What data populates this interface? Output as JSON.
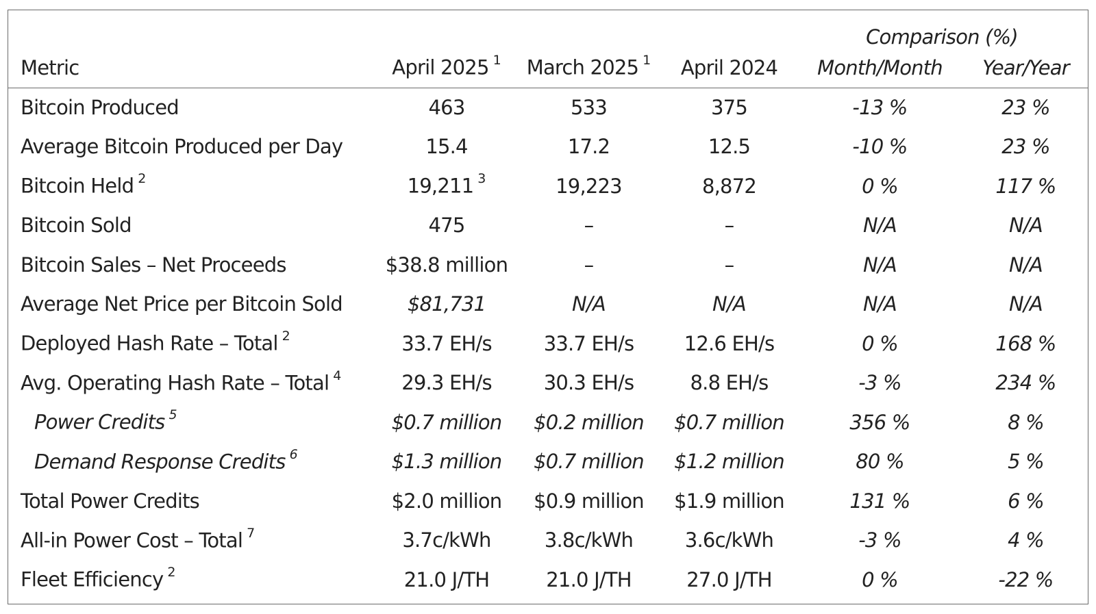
{
  "header": {
    "comparison_group": "Comparison (%)",
    "metric": "Metric",
    "april_2025": "April 2025",
    "april_2025_note": "1",
    "march_2025": "March 2025",
    "march_2025_note": "1",
    "april_2024": "April 2024",
    "month_month": "Month/Month",
    "year_year": "Year/Year"
  },
  "rows": [
    {
      "metric": "Bitcoin Produced",
      "note": "",
      "apr25": "463",
      "apr25_note": "",
      "mar25": "533",
      "apr24": "375",
      "mom": "-13 %",
      "yoy": "23 %"
    },
    {
      "metric": "Average Bitcoin Produced per Day",
      "note": "",
      "apr25": "15.4",
      "apr25_note": "",
      "mar25": "17.2",
      "apr24": "12.5",
      "mom": "-10 %",
      "yoy": "23 %"
    },
    {
      "metric": "Bitcoin Held",
      "note": "2",
      "apr25": "19,211",
      "apr25_note": "3",
      "mar25": "19,223",
      "apr24": "8,872",
      "mom": "0 %",
      "yoy": "117 %"
    },
    {
      "metric": "Bitcoin Sold",
      "note": "",
      "apr25": "475",
      "apr25_note": "",
      "mar25": "–",
      "apr24": "–",
      "mom": "N/A",
      "yoy": "N/A"
    },
    {
      "metric": "Bitcoin Sales – Net Proceeds",
      "note": "",
      "apr25": "$38.8 million",
      "apr25_note": "",
      "mar25": "–",
      "apr24": "–",
      "mom": "N/A",
      "yoy": "N/A"
    },
    {
      "metric": "Average Net Price per Bitcoin Sold",
      "note": "",
      "apr25": "$81,731",
      "apr25_note": "",
      "mar25": "N/A",
      "apr24": "N/A",
      "mom": "N/A",
      "yoy": "N/A"
    },
    {
      "metric": "Deployed Hash Rate – Total",
      "note": "2",
      "apr25": "33.7 EH/s",
      "apr25_note": "",
      "mar25": "33.7 EH/s",
      "apr24": "12.6 EH/s",
      "mom": "0 %",
      "yoy": "168 %"
    },
    {
      "metric": "Avg. Operating Hash Rate – Total",
      "note": "4",
      "apr25": "29.3 EH/s",
      "apr25_note": "",
      "mar25": "30.3 EH/s",
      "apr24": "8.8 EH/s",
      "mom": "-3 %",
      "yoy": "234 %"
    },
    {
      "metric": "Power Credits",
      "note": "5",
      "apr25": "$0.7 million",
      "apr25_note": "",
      "mar25": "$0.2 million",
      "apr24": "$0.7 million",
      "mom": "356 %",
      "yoy": "8 %"
    },
    {
      "metric": "Demand Response Credits",
      "note": "6",
      "apr25": "$1.3 million",
      "apr25_note": "",
      "mar25": "$0.7 million",
      "apr24": "$1.2 million",
      "mom": "80 %",
      "yoy": "5 %"
    },
    {
      "metric": "Total Power Credits",
      "note": "",
      "apr25": "$2.0 million",
      "apr25_note": "",
      "mar25": "$0.9 million",
      "apr24": "$1.9 million",
      "mom": "131 %",
      "yoy": "6 %"
    },
    {
      "metric": "All-in Power Cost – Total",
      "note": "7",
      "apr25": "3.7c/kWh",
      "apr25_note": "",
      "mar25": "3.8c/kWh",
      "apr24": "3.6c/kWh",
      "mom": "-3 %",
      "yoy": "4 %"
    },
    {
      "metric": "Fleet Efficiency",
      "note": "2",
      "apr25": "21.0 J/TH",
      "apr25_note": "",
      "mar25": "21.0 J/TH",
      "apr24": "27.0 J/TH",
      "mom": "0 %",
      "yoy": "-22 %"
    }
  ]
}
